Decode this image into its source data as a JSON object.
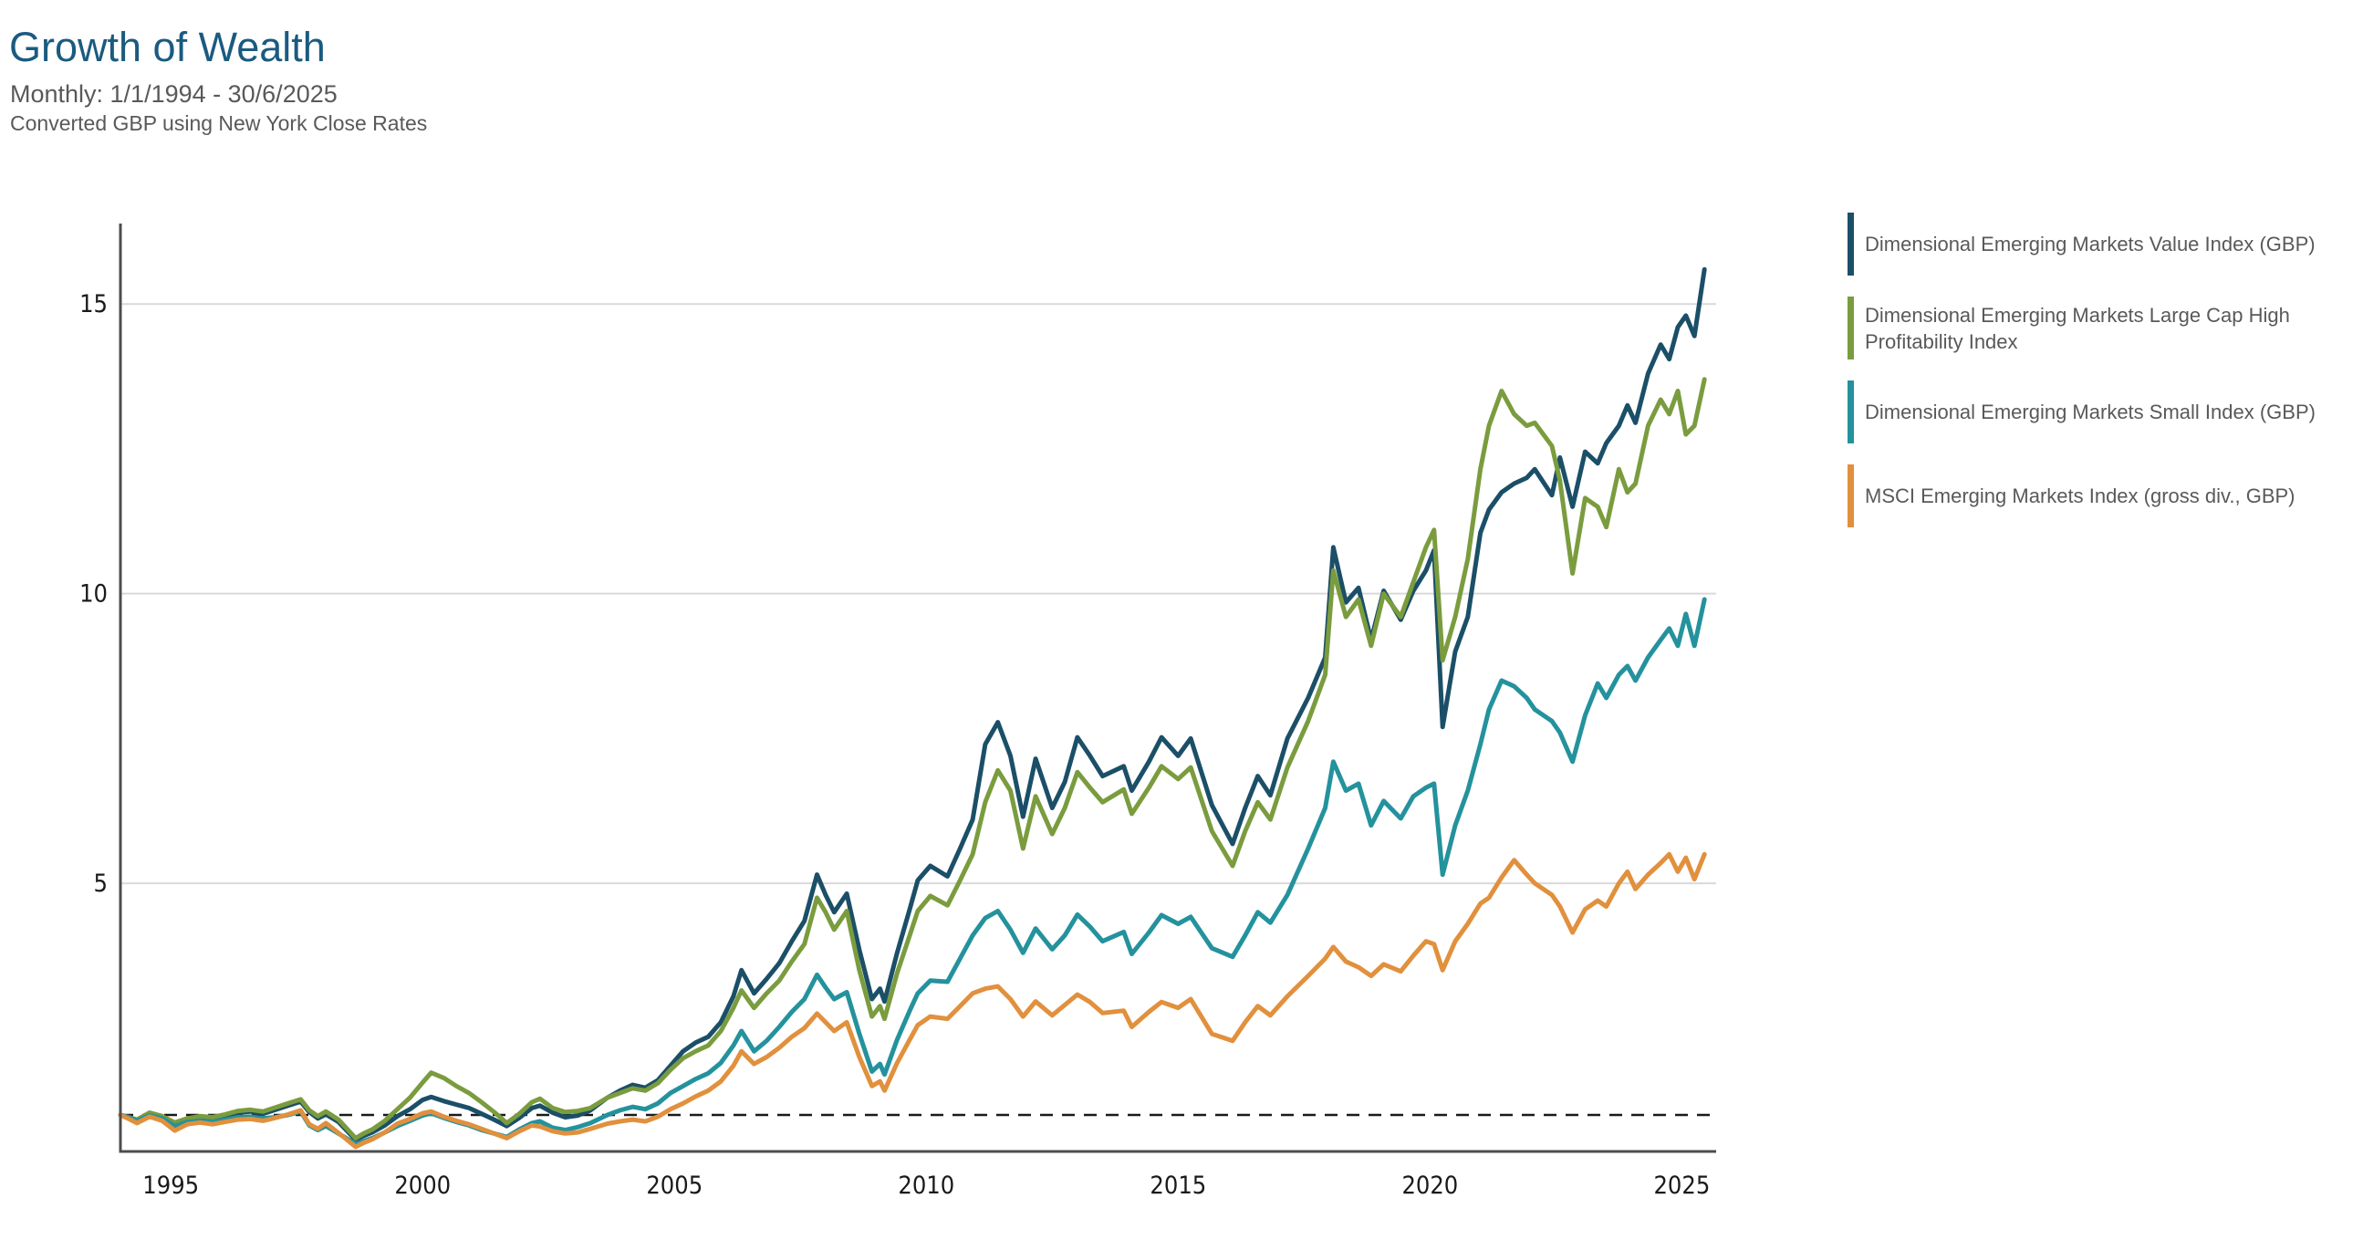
{
  "header": {
    "title": "Growth of Wealth",
    "subtitle": "Monthly: 1/1/1994 - 30/6/2025",
    "note": "Converted GBP using New York Close Rates"
  },
  "colors": {
    "title": "#1a5b80",
    "subtitle": "#58595b",
    "axis": "#4d4d4d",
    "grid": "#d9d9d9",
    "tick_label": "#1a1a1a",
    "baseline": "#1a1a1a"
  },
  "chart_data": {
    "type": "line",
    "title": "Growth of Wealth",
    "subtitle": "Monthly: 1/1/1994 - 30/6/2025",
    "note": "Converted GBP using New York Close Rates",
    "legend_position": "right",
    "x_axis": {
      "label": "",
      "ticks": [
        1995,
        2000,
        2005,
        2010,
        2015,
        2020,
        2025
      ],
      "range": [
        1994.0,
        2025.5
      ]
    },
    "y_axis": {
      "label": "",
      "ticks": [
        5,
        10,
        15
      ],
      "range": [
        0.37,
        16.39
      ],
      "grid": true,
      "dashed_baseline_at": 1.0
    },
    "start_value": 1.0,
    "series": [
      {
        "label": "Dimensional Emerging Markets Value Index (GBP)",
        "color": "#1b4f68",
        "end_value": 15.6
      },
      {
        "label": "Dimensional Emerging Markets Large Cap High Profitability Index",
        "color": "#7a9c3e",
        "end_value": 13.7
      },
      {
        "label": "Dimensional Emerging Markets Small Index (GBP)",
        "color": "#24929d",
        "end_value": 9.9
      },
      {
        "label": "MSCI Emerging Markets Index (gross div., GBP)",
        "color": "#e1903d",
        "end_value": 5.5
      }
    ],
    "columns": [
      "year",
      "value_index",
      "large_cap_high_profitability_index",
      "small_index",
      "msci_index"
    ],
    "points": [
      [
        1994.0,
        1.0,
        1.0,
        1.0,
        1.0
      ],
      [
        1994.17,
        0.95,
        0.96,
        0.96,
        0.93
      ],
      [
        1994.33,
        0.9,
        0.92,
        0.9,
        0.86
      ],
      [
        1994.58,
        1.03,
        1.04,
        0.99,
        0.97
      ],
      [
        1994.83,
        0.97,
        0.98,
        0.94,
        0.9
      ],
      [
        1995.08,
        0.85,
        0.87,
        0.81,
        0.73
      ],
      [
        1995.33,
        0.92,
        0.94,
        0.88,
        0.84
      ],
      [
        1995.58,
        0.96,
        0.98,
        0.9,
        0.87
      ],
      [
        1995.83,
        0.93,
        0.96,
        0.88,
        0.84
      ],
      [
        1996.08,
        0.98,
        1.01,
        0.92,
        0.88
      ],
      [
        1996.33,
        1.04,
        1.07,
        0.96,
        0.92
      ],
      [
        1996.58,
        1.06,
        1.09,
        0.97,
        0.93
      ],
      [
        1996.83,
        1.02,
        1.06,
        0.94,
        0.9
      ],
      [
        1997.08,
        1.09,
        1.13,
        0.96,
        0.95
      ],
      [
        1997.33,
        1.16,
        1.2,
        1.0,
        1.01
      ],
      [
        1997.58,
        1.23,
        1.27,
        1.06,
        1.08
      ],
      [
        1997.75,
        1.05,
        1.08,
        0.82,
        0.84
      ],
      [
        1997.92,
        0.94,
        0.98,
        0.74,
        0.76
      ],
      [
        1998.08,
        1.01,
        1.06,
        0.81,
        0.86
      ],
      [
        1998.33,
        0.88,
        0.92,
        0.68,
        0.69
      ],
      [
        1998.67,
        0.57,
        0.6,
        0.5,
        0.45
      ],
      [
        1998.83,
        0.64,
        0.68,
        0.55,
        0.52
      ],
      [
        1999.0,
        0.7,
        0.75,
        0.6,
        0.58
      ],
      [
        1999.25,
        0.82,
        0.9,
        0.7,
        0.7
      ],
      [
        1999.5,
        0.98,
        1.1,
        0.81,
        0.85
      ],
      [
        1999.75,
        1.1,
        1.3,
        0.9,
        0.93
      ],
      [
        2000.0,
        1.26,
        1.56,
        0.99,
        1.03
      ],
      [
        2000.17,
        1.31,
        1.73,
        1.03,
        1.06
      ],
      [
        2000.42,
        1.24,
        1.64,
        0.95,
        0.97
      ],
      [
        2000.67,
        1.18,
        1.5,
        0.88,
        0.9
      ],
      [
        2000.92,
        1.12,
        1.38,
        0.82,
        0.84
      ],
      [
        2001.17,
        1.02,
        1.22,
        0.74,
        0.76
      ],
      [
        2001.42,
        0.92,
        1.05,
        0.68,
        0.68
      ],
      [
        2001.67,
        0.81,
        0.86,
        0.62,
        0.6
      ],
      [
        2001.92,
        0.95,
        1.02,
        0.75,
        0.72
      ],
      [
        2002.17,
        1.12,
        1.22,
        0.86,
        0.82
      ],
      [
        2002.33,
        1.16,
        1.28,
        0.89,
        0.8
      ],
      [
        2002.58,
        1.04,
        1.12,
        0.78,
        0.72
      ],
      [
        2002.83,
        0.96,
        1.05,
        0.74,
        0.68
      ],
      [
        2003.08,
        0.99,
        1.07,
        0.79,
        0.7
      ],
      [
        2003.33,
        1.08,
        1.12,
        0.86,
        0.76
      ],
      [
        2003.67,
        1.3,
        1.3,
        1.0,
        0.85
      ],
      [
        2003.92,
        1.42,
        1.38,
        1.08,
        0.89
      ],
      [
        2004.17,
        1.52,
        1.46,
        1.14,
        0.92
      ],
      [
        2004.42,
        1.47,
        1.42,
        1.1,
        0.89
      ],
      [
        2004.67,
        1.6,
        1.55,
        1.2,
        0.97
      ],
      [
        2004.92,
        1.85,
        1.78,
        1.38,
        1.1
      ],
      [
        2005.17,
        2.1,
        1.98,
        1.5,
        1.2
      ],
      [
        2005.42,
        2.25,
        2.1,
        1.62,
        1.32
      ],
      [
        2005.67,
        2.35,
        2.2,
        1.72,
        1.42
      ],
      [
        2005.92,
        2.6,
        2.45,
        1.9,
        1.58
      ],
      [
        2006.17,
        3.05,
        2.85,
        2.2,
        1.85
      ],
      [
        2006.33,
        3.5,
        3.15,
        2.45,
        2.1
      ],
      [
        2006.58,
        3.1,
        2.85,
        2.1,
        1.88
      ],
      [
        2006.83,
        3.35,
        3.1,
        2.28,
        2.0
      ],
      [
        2007.08,
        3.62,
        3.32,
        2.52,
        2.16
      ],
      [
        2007.33,
        4.0,
        3.65,
        2.78,
        2.35
      ],
      [
        2007.58,
        4.35,
        3.95,
        3.0,
        2.5
      ],
      [
        2007.83,
        5.15,
        4.75,
        3.42,
        2.75
      ],
      [
        2008.0,
        4.8,
        4.5,
        3.2,
        2.6
      ],
      [
        2008.17,
        4.5,
        4.2,
        3.0,
        2.45
      ],
      [
        2008.42,
        4.82,
        4.52,
        3.12,
        2.6
      ],
      [
        2008.67,
        3.85,
        3.5,
        2.4,
        2.0
      ],
      [
        2008.92,
        3.0,
        2.7,
        1.75,
        1.5
      ],
      [
        2009.08,
        3.18,
        2.88,
        1.88,
        1.58
      ],
      [
        2009.17,
        2.96,
        2.66,
        1.7,
        1.42
      ],
      [
        2009.42,
        3.8,
        3.45,
        2.3,
        1.9
      ],
      [
        2009.67,
        4.55,
        4.1,
        2.8,
        2.3
      ],
      [
        2009.83,
        5.05,
        4.52,
        3.1,
        2.55
      ],
      [
        2010.08,
        5.3,
        4.78,
        3.32,
        2.7
      ],
      [
        2010.42,
        5.12,
        4.62,
        3.3,
        2.66
      ],
      [
        2010.67,
        5.6,
        5.05,
        3.7,
        2.88
      ],
      [
        2010.92,
        6.1,
        5.5,
        4.1,
        3.1
      ],
      [
        2011.17,
        7.4,
        6.4,
        4.4,
        3.18
      ],
      [
        2011.42,
        7.78,
        6.95,
        4.52,
        3.22
      ],
      [
        2011.67,
        7.2,
        6.6,
        4.2,
        3.0
      ],
      [
        2011.92,
        6.15,
        5.6,
        3.8,
        2.7
      ],
      [
        2012.17,
        7.15,
        6.5,
        4.22,
        2.96
      ],
      [
        2012.5,
        6.3,
        5.85,
        3.86,
        2.72
      ],
      [
        2012.75,
        6.75,
        6.3,
        4.1,
        2.9
      ],
      [
        2013.0,
        7.52,
        6.92,
        4.46,
        3.08
      ],
      [
        2013.25,
        7.2,
        6.65,
        4.25,
        2.95
      ],
      [
        2013.5,
        6.85,
        6.4,
        4.0,
        2.76
      ],
      [
        2013.92,
        7.02,
        6.62,
        4.16,
        2.8
      ],
      [
        2014.08,
        6.6,
        6.2,
        3.78,
        2.52
      ],
      [
        2014.42,
        7.1,
        6.65,
        4.15,
        2.78
      ],
      [
        2014.67,
        7.52,
        7.02,
        4.45,
        2.95
      ],
      [
        2015.0,
        7.2,
        6.8,
        4.3,
        2.85
      ],
      [
        2015.25,
        7.5,
        7.0,
        4.42,
        3.0
      ],
      [
        2015.67,
        6.35,
        5.9,
        3.88,
        2.4
      ],
      [
        2016.08,
        5.68,
        5.3,
        3.73,
        2.28
      ],
      [
        2016.33,
        6.3,
        5.9,
        4.1,
        2.6
      ],
      [
        2016.58,
        6.85,
        6.4,
        4.5,
        2.88
      ],
      [
        2016.83,
        6.52,
        6.1,
        4.32,
        2.72
      ],
      [
        2017.17,
        7.5,
        7.0,
        4.8,
        3.05
      ],
      [
        2017.58,
        8.2,
        7.8,
        5.6,
        3.4
      ],
      [
        2017.92,
        8.9,
        8.6,
        6.3,
        3.7
      ],
      [
        2018.08,
        10.8,
        10.4,
        7.1,
        3.9
      ],
      [
        2018.33,
        9.85,
        9.6,
        6.6,
        3.65
      ],
      [
        2018.58,
        10.1,
        9.9,
        6.72,
        3.55
      ],
      [
        2018.83,
        9.2,
        9.1,
        6.0,
        3.4
      ],
      [
        2019.08,
        10.05,
        10.0,
        6.42,
        3.6
      ],
      [
        2019.42,
        9.55,
        9.6,
        6.12,
        3.48
      ],
      [
        2019.67,
        10.05,
        10.2,
        6.5,
        3.75
      ],
      [
        2019.92,
        10.4,
        10.8,
        6.65,
        4.0
      ],
      [
        2020.08,
        10.75,
        11.1,
        6.72,
        3.95
      ],
      [
        2020.25,
        7.7,
        8.85,
        5.15,
        3.5
      ],
      [
        2020.5,
        9.0,
        9.6,
        6.0,
        4.0
      ],
      [
        2020.75,
        9.6,
        10.6,
        6.6,
        4.3
      ],
      [
        2021.0,
        11.05,
        12.15,
        7.4,
        4.65
      ],
      [
        2021.17,
        11.45,
        12.9,
        8.0,
        4.75
      ],
      [
        2021.42,
        11.75,
        13.5,
        8.5,
        5.1
      ],
      [
        2021.67,
        11.9,
        13.1,
        8.4,
        5.4
      ],
      [
        2021.92,
        12.0,
        12.9,
        8.2,
        5.15
      ],
      [
        2022.08,
        12.15,
        12.95,
        8.0,
        5.0
      ],
      [
        2022.42,
        11.7,
        12.55,
        7.8,
        4.8
      ],
      [
        2022.58,
        12.35,
        11.95,
        7.6,
        4.6
      ],
      [
        2022.83,
        11.5,
        10.35,
        7.1,
        4.15
      ],
      [
        2023.08,
        12.45,
        11.65,
        7.9,
        4.55
      ],
      [
        2023.33,
        12.25,
        11.5,
        8.45,
        4.7
      ],
      [
        2023.5,
        12.6,
        11.15,
        8.2,
        4.6
      ],
      [
        2023.75,
        12.9,
        12.15,
        8.6,
        5.0
      ],
      [
        2023.92,
        13.25,
        11.75,
        8.75,
        5.2
      ],
      [
        2024.08,
        12.95,
        11.9,
        8.5,
        4.9
      ],
      [
        2024.33,
        13.8,
        12.9,
        8.9,
        5.15
      ],
      [
        2024.58,
        14.3,
        13.35,
        9.2,
        5.35
      ],
      [
        2024.75,
        14.05,
        13.1,
        9.4,
        5.5
      ],
      [
        2024.92,
        14.6,
        13.5,
        9.1,
        5.2
      ],
      [
        2025.08,
        14.8,
        12.75,
        9.65,
        5.44
      ],
      [
        2025.25,
        14.45,
        12.9,
        9.1,
        5.07
      ],
      [
        2025.45,
        15.6,
        13.7,
        9.9,
        5.5
      ]
    ]
  }
}
